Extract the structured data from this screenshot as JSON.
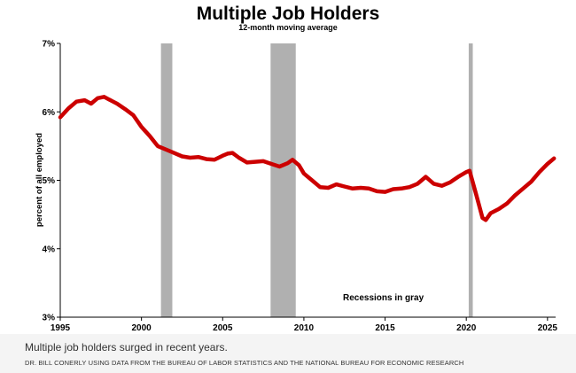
{
  "chart_data": {
    "type": "line",
    "title": "Multiple Job Holders",
    "subtitle": "12-month moving average",
    "xlabel": "",
    "ylabel": "percent of all employed",
    "xlim": [
      1995,
      2025.5
    ],
    "ylim": [
      3,
      7
    ],
    "x_ticks": [
      1995,
      2000,
      2005,
      2010,
      2015,
      2020,
      2025
    ],
    "y_ticks": [
      {
        "value": 3,
        "label": "3%"
      },
      {
        "value": 4,
        "label": "4%"
      },
      {
        "value": 5,
        "label": "5%"
      },
      {
        "value": 6,
        "label": "6%"
      },
      {
        "value": 7,
        "label": "7%"
      }
    ],
    "grid": false,
    "annotation": "Recessions in gray",
    "recessions": [
      {
        "start": 2001.2,
        "end": 2001.9
      },
      {
        "start": 2007.95,
        "end": 2009.5
      },
      {
        "start": 2020.15,
        "end": 2020.4
      }
    ],
    "line_color": "#cc0000",
    "recession_color": "#b0b0b0",
    "series": [
      {
        "x": [
          1995.0,
          1995.5,
          1996.0,
          1996.5,
          1996.9,
          1997.3,
          1997.7,
          1998.0,
          1998.5,
          1999.0,
          1999.5,
          2000.0,
          2000.5,
          2001.0,
          2001.5,
          2002.0,
          2002.5,
          2003.0,
          2003.5,
          2004.0,
          2004.5,
          2005.0,
          2005.3,
          2005.6,
          2006.0,
          2006.5,
          2007.0,
          2007.5,
          2008.0,
          2008.5,
          2009.0,
          2009.3,
          2009.7,
          2010.0,
          2010.5,
          2011.0,
          2011.5,
          2012.0,
          2012.5,
          2013.0,
          2013.5,
          2014.0,
          2014.5,
          2015.0,
          2015.5,
          2016.0,
          2016.5,
          2017.0,
          2017.5,
          2018.0,
          2018.5,
          2019.0,
          2019.5,
          2020.0,
          2020.2,
          2020.6,
          2021.0,
          2021.2,
          2021.5,
          2022.0,
          2022.5,
          2023.0,
          2023.5,
          2024.0,
          2024.5,
          2025.0,
          2025.4
        ],
        "y": [
          5.92,
          6.05,
          6.15,
          6.17,
          6.12,
          6.2,
          6.22,
          6.18,
          6.12,
          6.04,
          5.95,
          5.78,
          5.65,
          5.5,
          5.45,
          5.4,
          5.35,
          5.33,
          5.34,
          5.31,
          5.3,
          5.36,
          5.39,
          5.4,
          5.33,
          5.26,
          5.27,
          5.28,
          5.24,
          5.2,
          5.25,
          5.3,
          5.22,
          5.1,
          5.0,
          4.9,
          4.89,
          4.94,
          4.91,
          4.88,
          4.89,
          4.88,
          4.84,
          4.83,
          4.87,
          4.88,
          4.9,
          4.95,
          5.05,
          4.95,
          4.92,
          4.97,
          5.05,
          5.12,
          5.14,
          4.8,
          4.45,
          4.42,
          4.52,
          4.58,
          4.66,
          4.78,
          4.88,
          4.98,
          5.12,
          5.24,
          5.32
        ]
      }
    ]
  },
  "caption": "Multiple job holders surged in recent years.",
  "credit": "DR. BILL CONERLY USING DATA FROM THE BUREAU OF LABOR STATISTICS AND THE NATIONAL BUREAU FOR ECONOMIC RESEARCH"
}
